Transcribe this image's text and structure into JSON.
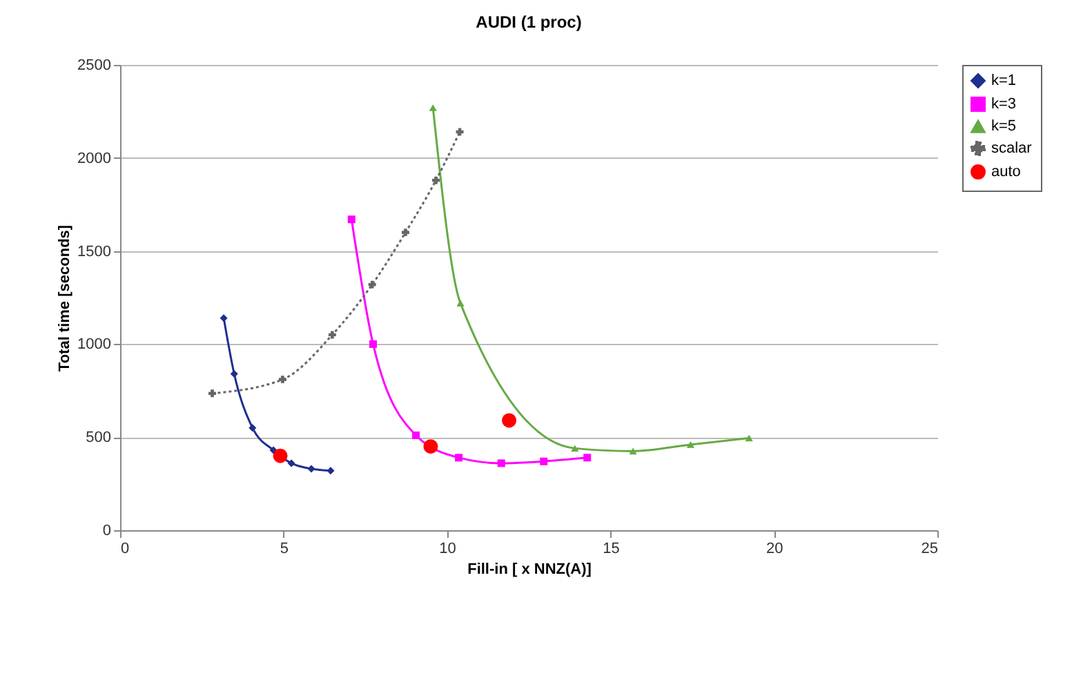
{
  "chart_data": {
    "type": "line",
    "title": "AUDI (1 proc)",
    "xlabel": "Fill-in [ x NNZ(A)]",
    "ylabel": "Total time [seconds]",
    "xlim": [
      0,
      25
    ],
    "xticks": [
      0,
      5,
      10,
      15,
      20,
      25
    ],
    "ylim": [
      0,
      2500
    ],
    "yticks": [
      0,
      500,
      1000,
      1500,
      2000,
      2500
    ],
    "grid": "y",
    "legend": "right",
    "series": [
      {
        "name": "k=1",
        "color": "#1f2f8f",
        "marker": "diamond",
        "line_style": "solid",
        "x": [
          3.17,
          3.49,
          4.05,
          4.69,
          5.24,
          5.85,
          6.44
        ],
        "values": [
          1140,
          840,
          550,
          430,
          360,
          330,
          320
        ]
      },
      {
        "name": "k=3",
        "color": "#ff00ff",
        "marker": "square",
        "line_style": "solid",
        "x": [
          7.08,
          7.74,
          9.05,
          10.36,
          11.66,
          12.96,
          14.29
        ],
        "values": [
          1670,
          1000,
          510,
          390,
          360,
          370,
          390
        ]
      },
      {
        "name": "k=5",
        "color": "#66aa44",
        "marker": "triangle",
        "line_style": "solid",
        "x": [
          9.57,
          10.41,
          13.91,
          15.69,
          17.45,
          19.24
        ],
        "values": [
          2270,
          1220,
          440,
          425,
          460,
          495
        ]
      },
      {
        "name": "scalar",
        "color": "#666666",
        "marker": "cross",
        "line_style": "dotted",
        "x": [
          2.82,
          4.97,
          6.49,
          7.71,
          8.73,
          9.66,
          10.39
        ],
        "values": [
          735,
          810,
          1050,
          1320,
          1600,
          1880,
          2140
        ]
      },
      {
        "name": "auto",
        "type": "scatter",
        "color": "#ff0000",
        "marker": "circle",
        "x": [
          4.9,
          9.5,
          11.9
        ],
        "values": [
          400,
          450,
          590
        ]
      }
    ]
  }
}
